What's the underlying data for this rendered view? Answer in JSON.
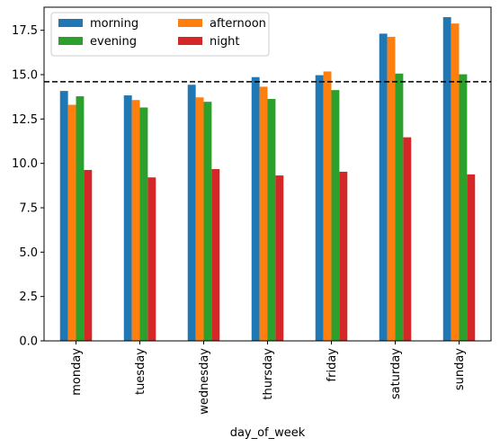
{
  "chart_data": {
    "type": "bar",
    "title": "",
    "xlabel": "day_of_week",
    "ylabel": "",
    "categories": [
      "monday",
      "tuesday",
      "wednesday",
      "thursday",
      "friday",
      "saturday",
      "sunday"
    ],
    "series": [
      {
        "name": "morning",
        "color": "#1f77b4",
        "values": [
          14.08,
          13.83,
          14.43,
          14.86,
          14.97,
          17.31,
          18.24
        ]
      },
      {
        "name": "afternoon",
        "color": "#ff7f0e",
        "values": [
          13.3,
          13.57,
          13.72,
          14.32,
          15.18,
          17.13,
          17.88
        ]
      },
      {
        "name": "evening",
        "color": "#2ca02c",
        "values": [
          13.78,
          13.15,
          13.47,
          13.63,
          14.13,
          15.06,
          15.02
        ]
      },
      {
        "name": "night",
        "color": "#d62728",
        "values": [
          9.63,
          9.21,
          9.68,
          9.32,
          9.53,
          11.47,
          9.38
        ]
      }
    ],
    "reference_line": {
      "y": 14.6,
      "style": "dashed",
      "color": "#000000"
    },
    "ylim": [
      0,
      18.8
    ],
    "yticks": [
      "0.0",
      "2.5",
      "5.0",
      "7.5",
      "10.0",
      "12.5",
      "15.0",
      "17.5"
    ],
    "grid": false,
    "legend": {
      "placement": "top-left",
      "columns": 2
    }
  }
}
